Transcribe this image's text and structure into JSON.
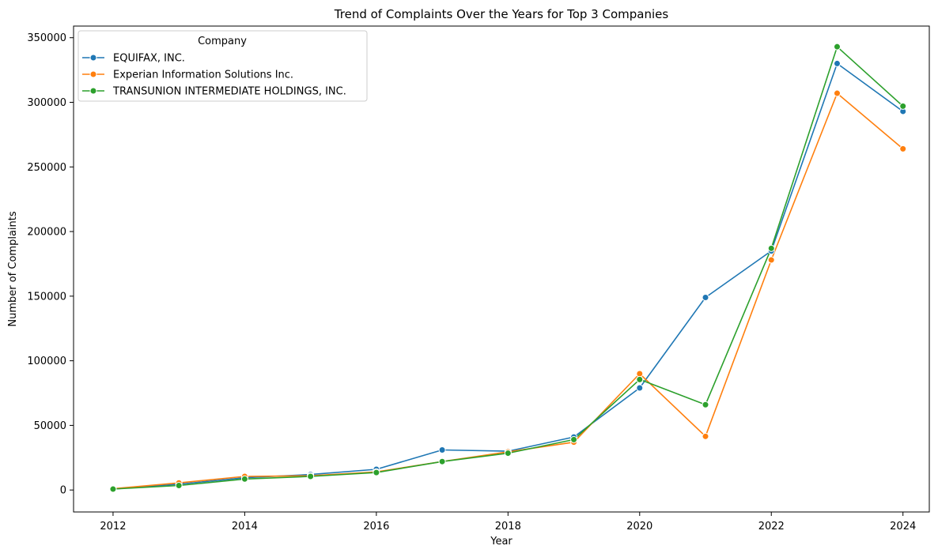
{
  "chart_data": {
    "type": "line",
    "title": "Trend of Complaints Over the Years for Top 3 Companies",
    "xlabel": "Year",
    "ylabel": "Number of Complaints",
    "xlim": [
      2011.4,
      2024.4
    ],
    "ylim": [
      -17000,
      359000
    ],
    "xticks": [
      2012,
      2014,
      2016,
      2018,
      2020,
      2022,
      2024
    ],
    "yticks": [
      0,
      50000,
      100000,
      150000,
      200000,
      250000,
      300000,
      350000
    ],
    "grid": false,
    "legend": {
      "title": "Company",
      "placement": "top-left"
    },
    "x": [
      2012,
      2013,
      2014,
      2015,
      2016,
      2017,
      2018,
      2019,
      2020,
      2021,
      2022,
      2023,
      2024
    ],
    "series": [
      {
        "name": "EQUIFAX, INC.",
        "color": "#1f77b4",
        "values": [
          800,
          4500,
          9500,
          12000,
          16000,
          31000,
          30000,
          41000,
          79000,
          149000,
          185000,
          330000,
          293000
        ]
      },
      {
        "name": "Experian Information Solutions Inc.",
        "color": "#ff7f0e",
        "values": [
          1000,
          5500,
          10500,
          11000,
          14000,
          22000,
          29500,
          37000,
          90000,
          41500,
          178000,
          307000,
          264000
        ]
      },
      {
        "name": "TRANSUNION INTERMEDIATE HOLDINGS, INC.",
        "color": "#2ca02c",
        "values": [
          700,
          3500,
          8500,
          10500,
          13500,
          22000,
          28500,
          39000,
          85500,
          66000,
          187000,
          343000,
          297000
        ]
      }
    ]
  }
}
